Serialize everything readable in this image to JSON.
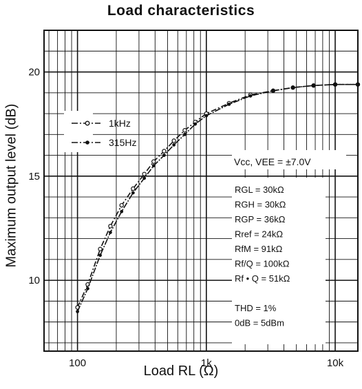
{
  "chart_data": {
    "type": "line",
    "title": "Load characteristics",
    "xlabel": "Load RL  (Ω)",
    "ylabel": "Maximum output  level  (dB)",
    "x_scale": "log",
    "xlim": [
      55,
      15000
    ],
    "ylim": [
      6.6,
      22.0
    ],
    "grid": true,
    "legend_position": "top-left",
    "x_ticks": [
      {
        "value": 100,
        "label": "100"
      },
      {
        "value": 1000,
        "label": "1k"
      },
      {
        "value": 10000,
        "label": "10k"
      }
    ],
    "y_ticks": [
      {
        "value": 10,
        "label": "10"
      },
      {
        "value": 15,
        "label": "15"
      },
      {
        "value": 20,
        "label": "20"
      }
    ],
    "series": [
      {
        "name": "1kHz",
        "marker": "open-circle",
        "x": [
          100,
          120,
          150,
          180,
          220,
          270,
          330,
          390,
          470,
          560,
          680,
          820,
          1000,
          1500,
          2200,
          3300,
          4700,
          6800,
          10000,
          15000
        ],
        "y": [
          8.7,
          9.8,
          11.5,
          12.6,
          13.6,
          14.4,
          15.1,
          15.7,
          16.2,
          16.7,
          17.2,
          17.6,
          18.0,
          18.5,
          18.9,
          19.1,
          19.25,
          19.35,
          19.4,
          19.4
        ]
      },
      {
        "name": "315Hz",
        "marker": "filled-dot",
        "x": [
          100,
          120,
          150,
          180,
          220,
          270,
          330,
          390,
          470,
          560,
          680,
          820,
          1000,
          1500,
          2200,
          3300,
          4700,
          6800,
          10000,
          15000
        ],
        "y": [
          8.5,
          9.6,
          11.2,
          12.3,
          13.3,
          14.2,
          14.9,
          15.5,
          16.0,
          16.5,
          17.0,
          17.5,
          17.9,
          18.45,
          18.85,
          19.1,
          19.25,
          19.35,
          19.4,
          19.4
        ]
      }
    ],
    "annotations": {
      "supply": "Vcc,  VEE = ±7.0V",
      "conditions": [
        "RGL = 30kΩ",
        "RGH = 30kΩ",
        "RGP = 36kΩ",
        "Rref = 24kΩ",
        "RfM = 91kΩ",
        "Rf/Q = 100kΩ",
        "Rf • Q = 51kΩ",
        "",
        "THD = 1%",
        "0dB = 5dBm"
      ]
    }
  }
}
